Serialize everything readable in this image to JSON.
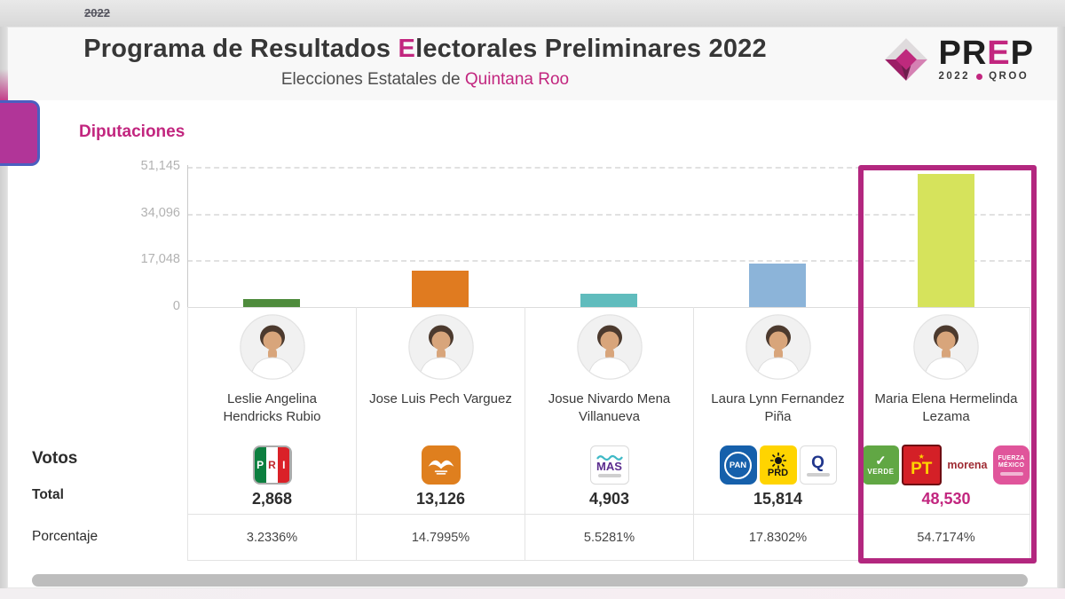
{
  "page": {
    "top_badge": "2022"
  },
  "header": {
    "title": {
      "pre": "Programa de Resultados ",
      "accent": "E",
      "post": "lectorales Preliminares 2022"
    },
    "subtitle": {
      "pre": "Elecciones Estatales de ",
      "accent": "Quintana Roo"
    },
    "logo": {
      "p1": "PR",
      "accent": "E",
      "p2": "P",
      "year": "2022",
      "state": "QROO"
    }
  },
  "tabs": {
    "current": "Diputaciones"
  },
  "row_labels": {
    "votes": "Votos",
    "total": "Total",
    "percentage": "Porcentaje"
  },
  "colors": {
    "accent": "#c2267f",
    "highlight_border": "#b3277f",
    "bars": [
      "#4e8b3c",
      "#e07b20",
      "#60bcbd",
      "#8cb4d9",
      "#d6e35c"
    ]
  },
  "chart_data": {
    "type": "bar",
    "title": "",
    "categories": [
      "Leslie Angelina Hendricks Rubio",
      "Jose Luis Pech Varguez",
      "Josue Nivardo Mena Villanueva",
      "Laura Lynn Fernandez Piña",
      "Maria Elena Hermelinda Lezama"
    ],
    "values": [
      2868,
      13126,
      4903,
      15814,
      48530
    ],
    "value_labels": [
      "2,868",
      "13,126",
      "4,903",
      "15,814",
      "48,530"
    ],
    "percentages": [
      "3.2336%",
      "14.7995%",
      "5.5281%",
      "17.8302%",
      "54.7174%"
    ],
    "bar_colors": [
      "#4e8b3c",
      "#e07b20",
      "#60bcbd",
      "#8cb4d9",
      "#d6e35c"
    ],
    "xlabel": "",
    "ylabel": "",
    "ylim": [
      0,
      51145
    ],
    "yticks": [
      {
        "label": "51,145",
        "value": 51145
      },
      {
        "label": "34,096",
        "value": 34096
      },
      {
        "label": "17,048",
        "value": 17048
      },
      {
        "label": "0",
        "value": 0
      }
    ],
    "grid": "horizontal-dashed",
    "legend": "none"
  },
  "candidates": [
    {
      "name": "Leslie Angelina Hendricks Rubio",
      "votes": "2,868",
      "votes_value": 2868,
      "percentage": "3.2336%",
      "bar_color": "#4e8b3c",
      "winner": false,
      "parties": [
        {
          "id": "pri",
          "label": "PRI"
        }
      ]
    },
    {
      "name": "Jose Luis Pech Varguez",
      "votes": "13,126",
      "votes_value": 13126,
      "percentage": "14.7995%",
      "bar_color": "#e07b20",
      "winner": false,
      "parties": [
        {
          "id": "mc",
          "label": ""
        }
      ]
    },
    {
      "name": "Josue Nivardo Mena Villanueva",
      "votes": "4,903",
      "votes_value": 4903,
      "percentage": "5.5281%",
      "bar_color": "#60bcbd",
      "winner": false,
      "parties": [
        {
          "id": "mas",
          "label": "MAS"
        }
      ]
    },
    {
      "name": "Laura Lynn Fernandez Piña",
      "votes": "15,814",
      "votes_value": 15814,
      "percentage": "17.8302%",
      "bar_color": "#8cb4d9",
      "winner": false,
      "parties": [
        {
          "id": "pan",
          "label": "PAN"
        },
        {
          "id": "prd",
          "label": "PRD"
        },
        {
          "id": "conf",
          "label": "Q"
        }
      ]
    },
    {
      "name": "Maria Elena Hermelinda Lezama",
      "votes": "48,530",
      "votes_value": 48530,
      "percentage": "54.7174%",
      "bar_color": "#d6e35c",
      "winner": true,
      "parties": [
        {
          "id": "verde",
          "label": "VERDE"
        },
        {
          "id": "pt",
          "label": "PT"
        },
        {
          "id": "morena",
          "label": "morena"
        },
        {
          "id": "fxm",
          "label": "FUERZA MÉXICO"
        }
      ]
    }
  ]
}
